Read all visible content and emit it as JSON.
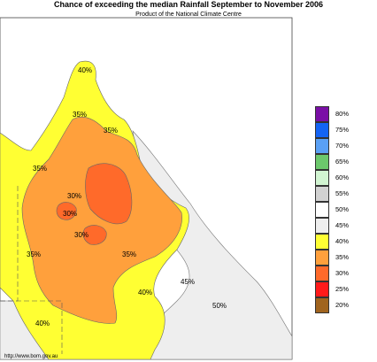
{
  "header": {
    "title": "Chance of exceeding the median Rainfall September to November 2006",
    "subtitle": "Product of the National Climate Centre"
  },
  "map": {
    "labels": [
      "40%",
      "35%",
      "35%",
      "35%",
      "30%",
      "30%",
      "30%",
      "35%",
      "35%",
      "40%",
      "45%",
      "50%",
      "40%"
    ]
  },
  "legend": {
    "items": [
      {
        "label": "80%",
        "color": "#7a0fa6"
      },
      {
        "label": "75%",
        "color": "#1464f4"
      },
      {
        "label": "70%",
        "color": "#5aa0f5"
      },
      {
        "label": "65%",
        "color": "#6cc86c"
      },
      {
        "label": "60%",
        "color": "#d2f5d2"
      },
      {
        "label": "55%",
        "color": "#d2d2d2"
      },
      {
        "label": "50%",
        "color": "#ffffff"
      },
      {
        "label": "45%",
        "color": "#eeeeee"
      },
      {
        "label": "40%",
        "color": "#ffff33"
      },
      {
        "label": "35%",
        "color": "#ffa03c"
      },
      {
        "label": "30%",
        "color": "#ff6a2a"
      },
      {
        "label": "25%",
        "color": "#ff1a1a"
      },
      {
        "label": "20%",
        "color": "#a0641e"
      }
    ]
  },
  "footer": {
    "url": "http://www.bom.gov.au"
  }
}
